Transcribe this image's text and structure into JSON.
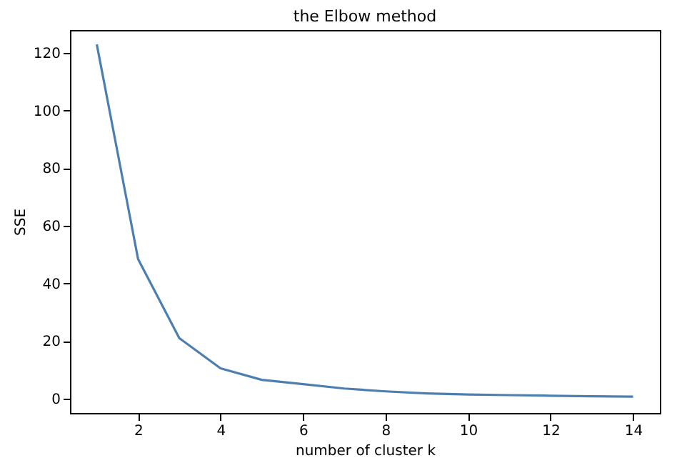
{
  "chart_data": {
    "type": "line",
    "title": "the Elbow method",
    "xlabel": "number of cluster k",
    "ylabel": "SSE",
    "x": [
      1,
      2,
      3,
      4,
      5,
      6,
      7,
      8,
      9,
      10,
      11,
      12,
      13,
      14
    ],
    "series": [
      {
        "color": "#4c7fb0",
        "values": [
          123,
          48.5,
          21,
          10.5,
          6.5,
          5,
          3.5,
          2.5,
          1.8,
          1.4,
          1.2,
          1,
          0.8,
          0.7
        ]
      }
    ],
    "xlim": [
      0.35,
      14.65
    ],
    "xticks": [
      2,
      4,
      6,
      8,
      10,
      12,
      14
    ],
    "ylim": [
      -5,
      128
    ],
    "yticks": [
      0,
      20,
      40,
      60,
      80,
      100,
      120
    ],
    "grid": false,
    "legend": false,
    "marker": "none",
    "line_style": "solid"
  }
}
